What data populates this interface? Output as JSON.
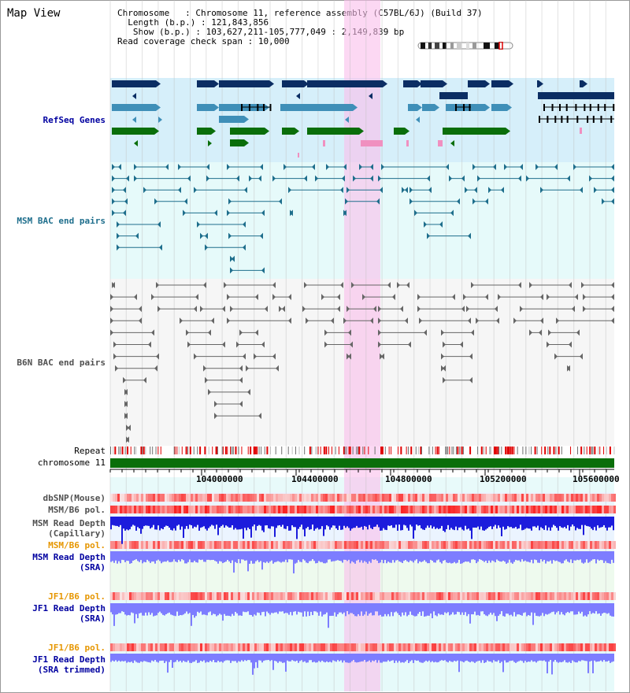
{
  "title": "Map View",
  "info": {
    "chromosome_label": "Chromosome",
    "chromosome_value": "Chromosome 11, reference assembly (C57BL/6J) (Build 37)",
    "length_label": "Length (b.p.)",
    "length_value": "121,843,856",
    "show_label": "Show (b.p.)",
    "show_value": "103,627,211-105,777,049 : 2,149,839 bp",
    "coverage_label": "Read coverage check span",
    "coverage_value": "10,000"
  },
  "tracks": {
    "refseq": "RefSeq Genes",
    "msm_bac": "MSM BAC end pairs",
    "b6n_bac": "B6N BAC end pairs",
    "repeat": "Repeat",
    "chromosome": "chromosome 11",
    "dbsnp": "dbSNP(Mouse)",
    "msm_b6_pol_1": "MSM/B6 pol.",
    "msm_read_depth_cap_1": "MSM Read Depth",
    "msm_read_depth_cap_2": "(Capillary)",
    "msm_b6_pol_2": "MSM/B6 pol.",
    "msm_read_depth_sra_1": "MSM Read Depth",
    "msm_read_depth_sra_2": "(SRA)",
    "jf1_b6_pol_1": "JF1/B6 pol.",
    "jf1_read_depth_1": "JF1 Read Depth",
    "jf1_read_depth_2": "(SRA)",
    "jf1_b6_pol_2": "JF1/B6 pol.",
    "jf1_read_depth_trim_1": "JF1 Read Depth",
    "jf1_read_depth_trim_2": "(SRA trimmed)"
  },
  "axis": {
    "ticks": [
      "104000000",
      "104400000",
      "104800000",
      "105200000",
      "105600000"
    ]
  },
  "colors": {
    "highlight": "#f8d8f0",
    "refseq_bg": "#d6effa",
    "bac_bg": "#e6fafa",
    "navy": "#0b2d63",
    "steel": "#3f8fb8",
    "green": "#0a6e0a",
    "pink": "#f090c0",
    "teal": "#1e6e8c",
    "gray": "#666666",
    "chrom": "#0a6e0a",
    "depth": "#1c1cdc",
    "depth_light": "#7d7dff",
    "label_blue": "#0000a0",
    "label_orange": "#e69600",
    "label_teal": "#1e6e8c",
    "label_gray": "#505050"
  }
}
